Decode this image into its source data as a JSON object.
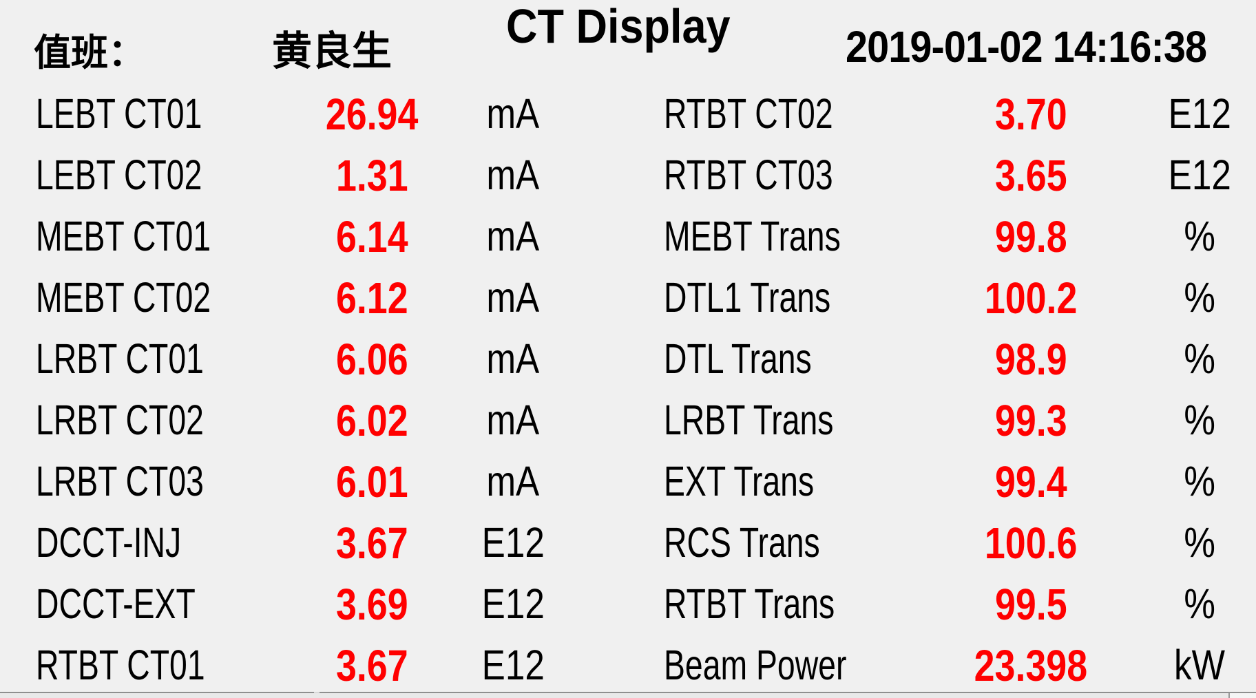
{
  "header": {
    "duty_label": "值班：",
    "duty_name": "黄良生",
    "title": "CT Display",
    "timestamp": "2019-01-02  14:16:38"
  },
  "colors": {
    "background": "#f0f0f0",
    "label_text": "#000000",
    "value_text": "#ff0000",
    "bottom_border": "#8f8f8f"
  },
  "readings": {
    "left": [
      {
        "label": "LEBT CT01",
        "value": "26.94",
        "unit": "mA"
      },
      {
        "label": "LEBT CT02",
        "value": "1.31",
        "unit": "mA"
      },
      {
        "label": "MEBT CT01",
        "value": "6.14",
        "unit": "mA"
      },
      {
        "label": "MEBT CT02",
        "value": "6.12",
        "unit": "mA"
      },
      {
        "label": "LRBT CT01",
        "value": "6.06",
        "unit": "mA"
      },
      {
        "label": "LRBT CT02",
        "value": "6.02",
        "unit": "mA"
      },
      {
        "label": "LRBT CT03",
        "value": "6.01",
        "unit": "mA"
      },
      {
        "label": "DCCT-INJ",
        "value": "3.67",
        "unit": "E12"
      },
      {
        "label": "DCCT-EXT",
        "value": "3.69",
        "unit": "E12"
      },
      {
        "label": "RTBT CT01",
        "value": "3.67",
        "unit": "E12"
      }
    ],
    "right": [
      {
        "label": "RTBT CT02",
        "value": "3.70",
        "unit": "E12"
      },
      {
        "label": "RTBT CT03",
        "value": "3.65",
        "unit": "E12"
      },
      {
        "label": "MEBT Trans",
        "value": "99.8",
        "unit": "%"
      },
      {
        "label": "DTL1 Trans",
        "value": "100.2",
        "unit": "%"
      },
      {
        "label": "DTL Trans",
        "value": "98.9",
        "unit": "%"
      },
      {
        "label": "LRBT Trans",
        "value": "99.3",
        "unit": "%"
      },
      {
        "label": "EXT Trans",
        "value": "99.4",
        "unit": "%"
      },
      {
        "label": "RCS Trans",
        "value": "100.6",
        "unit": "%"
      },
      {
        "label": "RTBT Trans",
        "value": "99.5",
        "unit": "%"
      },
      {
        "label": "Beam Power",
        "value": "23.398",
        "unit": "kW"
      }
    ]
  }
}
